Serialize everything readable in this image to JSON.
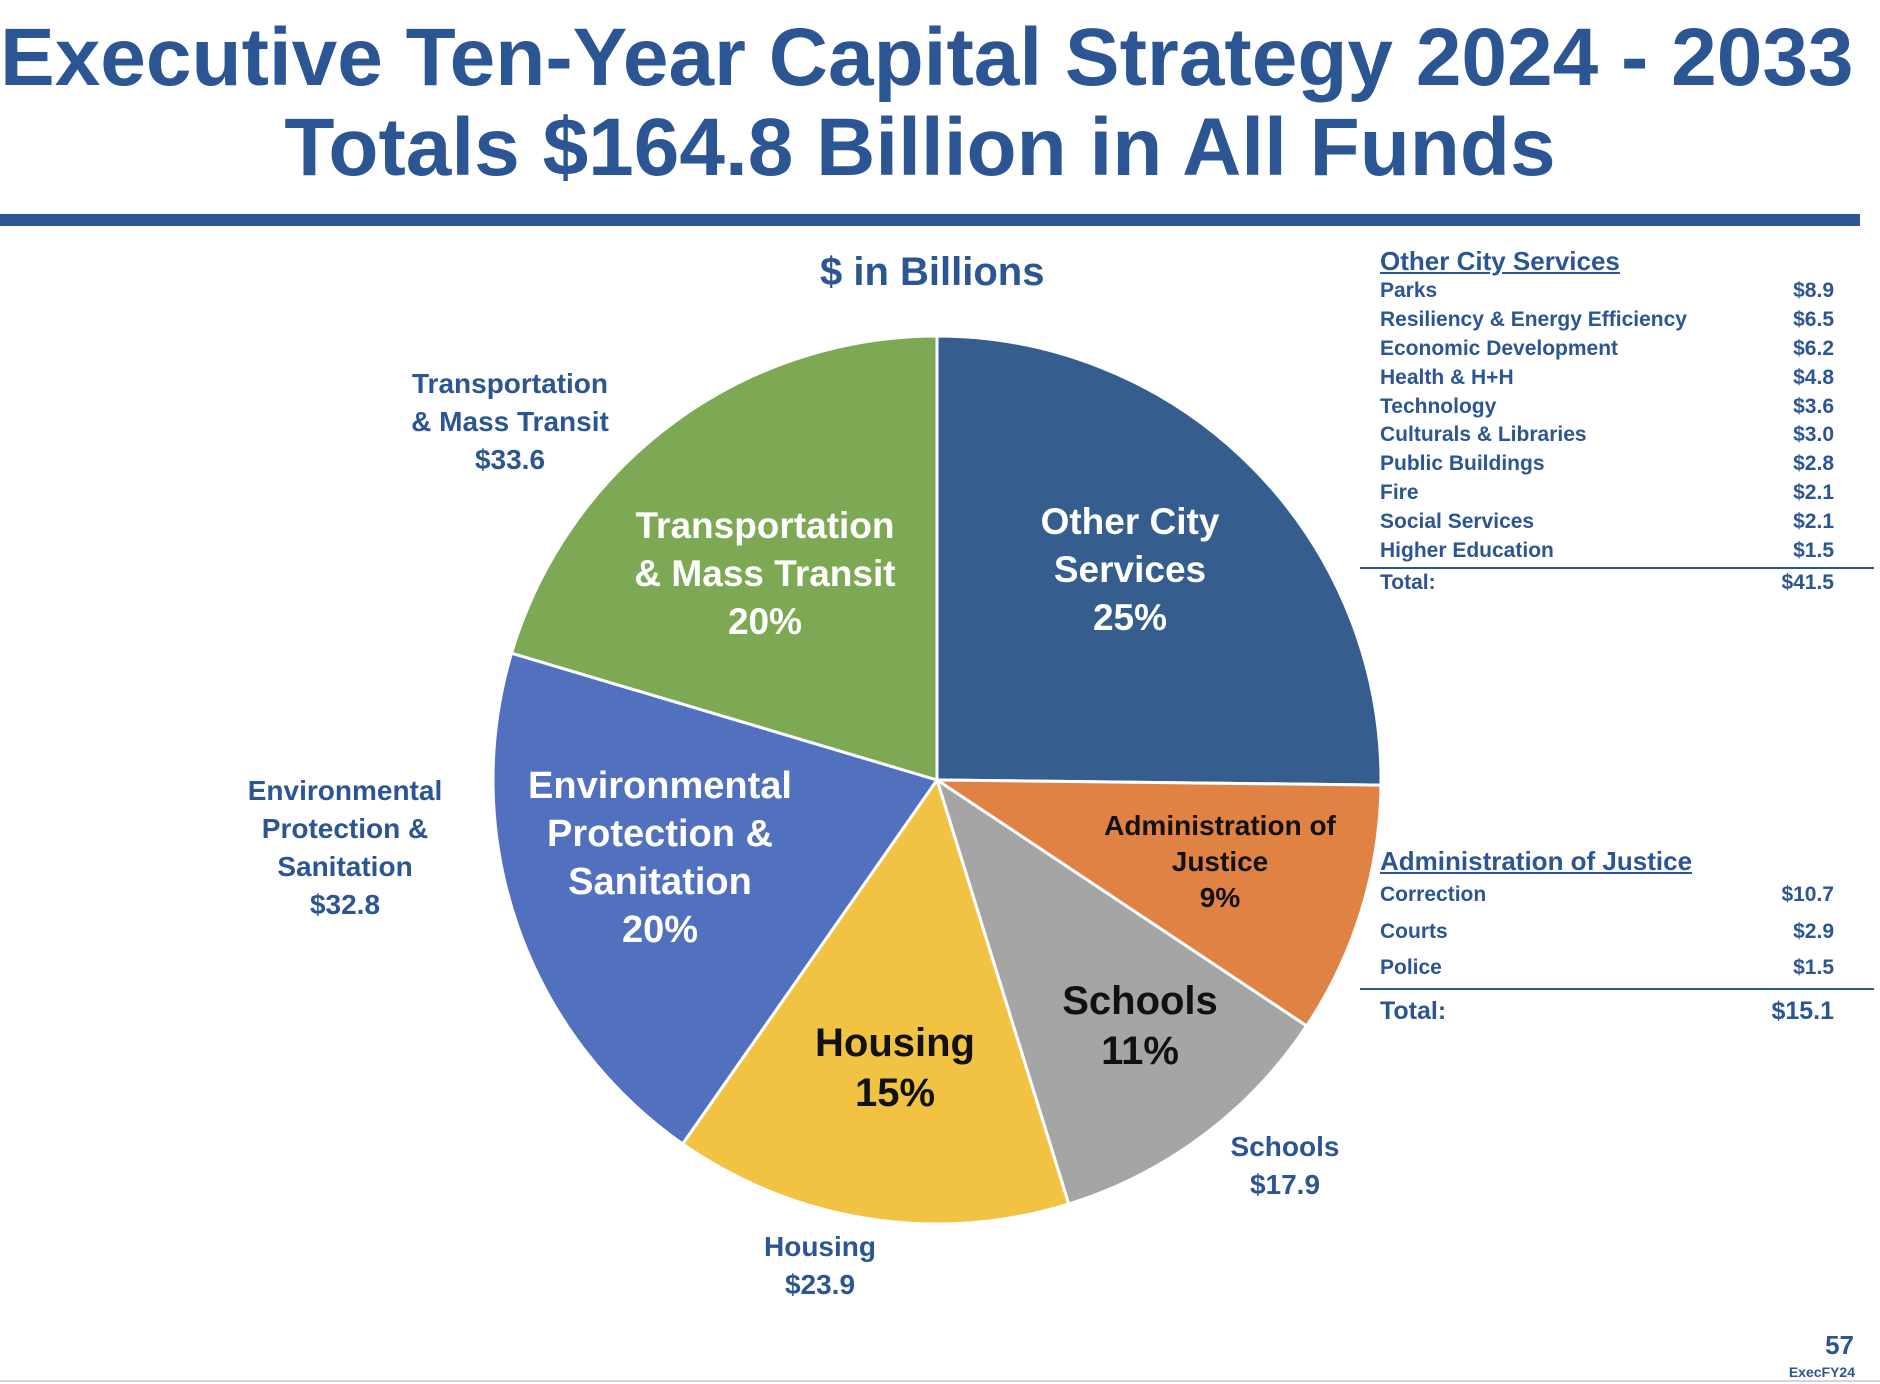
{
  "header": {
    "title_line1": "Executive Ten-Year Capital Strategy 2024 - 2033",
    "title_line2": "Totals $164.8 Billion in All Funds"
  },
  "chart_data": {
    "type": "pie",
    "title": "$ in Billions",
    "unit": "billions USD",
    "slices": [
      {
        "name": "Other City Services",
        "inside_label": [
          "Other City",
          "Services"
        ],
        "value": 41.5,
        "percent_label": "25%",
        "outside_label": [],
        "color": "#355e8f",
        "inner_text_color": "#ffffff"
      },
      {
        "name": "Administration of Justice",
        "inside_label": [
          "Administration of",
          "Justice"
        ],
        "value": 15.1,
        "percent_label": "9%",
        "outside_label": [],
        "color": "#e08244",
        "inner_text_color": "#111111"
      },
      {
        "name": "Schools",
        "inside_label": [
          "Schools"
        ],
        "value": 17.9,
        "percent_label": "11%",
        "outside_label": [
          "Schools",
          "$17.9"
        ],
        "color": "#a5a5a5",
        "inner_text_color": "#111111"
      },
      {
        "name": "Housing",
        "inside_label": [
          "Housing"
        ],
        "value": 23.9,
        "percent_label": "15%",
        "outside_label": [
          "Housing",
          "$23.9"
        ],
        "color": "#f2c242",
        "inner_text_color": "#111111"
      },
      {
        "name": "Environmental Protection & Sanitation",
        "inside_label": [
          "Environmental",
          "Protection &",
          "Sanitation"
        ],
        "value": 32.8,
        "percent_label": "20%",
        "outside_label": [
          "Environmental",
          "Protection &",
          "Sanitation",
          "$32.8"
        ],
        "color": "#5171be",
        "inner_text_color": "#ffffff"
      },
      {
        "name": "Transportation & Mass Transit",
        "inside_label": [
          "Transportation",
          "& Mass Transit"
        ],
        "value": 33.6,
        "percent_label": "20%",
        "outside_label": [
          "Transportation",
          "& Mass Transit",
          "$33.6"
        ],
        "color": "#7da955",
        "inner_text_color": "#ffffff"
      }
    ],
    "total": 164.8
  },
  "other_city_services": {
    "heading": "Other City Services",
    "items": [
      {
        "label": "Parks",
        "value": "$8.9"
      },
      {
        "label": "Resiliency & Energy Efficiency",
        "value": "$6.5"
      },
      {
        "label": "Economic Development",
        "value": "$6.2"
      },
      {
        "label": "Health & H+H",
        "value": "$4.8"
      },
      {
        "label": "Technology",
        "value": "$3.6"
      },
      {
        "label": "Culturals & Libraries",
        "value": "$3.0"
      },
      {
        "label": "Public Buildings",
        "value": "$2.8"
      },
      {
        "label": "Fire",
        "value": "$2.1"
      },
      {
        "label": "Social Services",
        "value": "$2.1"
      },
      {
        "label": "Higher Education",
        "value": "$1.5"
      }
    ],
    "total_label": "Total:",
    "total_value": "$41.5"
  },
  "administration_of_justice": {
    "heading": "Administration of Justice",
    "items": [
      {
        "label": "Correction",
        "value": "$10.7"
      },
      {
        "label": "Courts",
        "value": "$2.9"
      },
      {
        "label": "Police",
        "value": "$1.5"
      }
    ],
    "total_label": "Total:",
    "total_value": "$15.1"
  },
  "footer": {
    "page_number": "57",
    "doc_tag": "ExecFY24"
  }
}
